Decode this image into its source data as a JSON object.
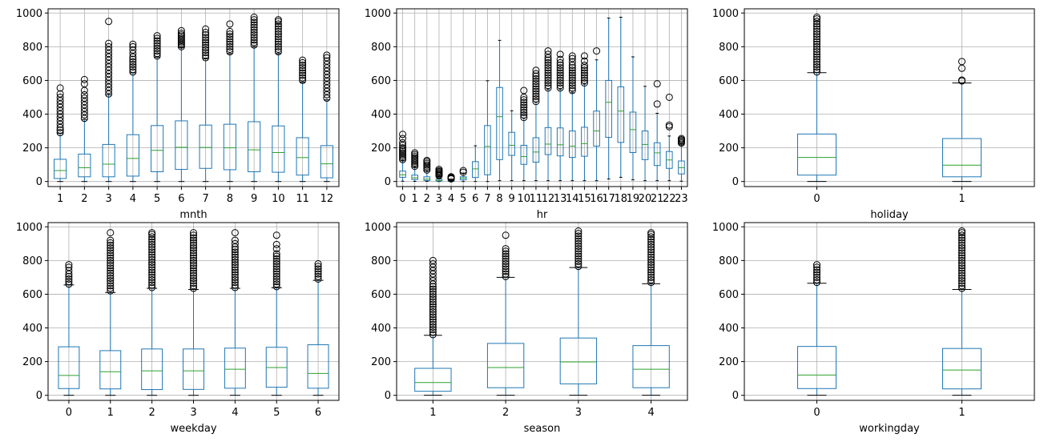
{
  "chart_data": [
    {
      "type": "box",
      "xlabel": "mnth",
      "ylim": [
        -30,
        1025
      ],
      "yticks": [
        0,
        200,
        400,
        600,
        800,
        1000
      ],
      "grid": true,
      "categories": [
        "1",
        "2",
        "3",
        "4",
        "5",
        "6",
        "7",
        "8",
        "9",
        "10",
        "11",
        "12"
      ],
      "boxes": [
        {
          "whislo": 0,
          "q1": 18,
          "med": 65,
          "q3": 132,
          "whishi": 285,
          "fliers": [
            290,
            305,
            320,
            340,
            360,
            380,
            400,
            420,
            440,
            460,
            480,
            500,
            520,
            555
          ]
        },
        {
          "whislo": 0,
          "q1": 28,
          "med": 82,
          "q3": 163,
          "whishi": 368,
          "fliers": [
            375,
            395,
            415,
            435,
            455,
            475,
            495,
            515,
            540,
            580,
            605
          ]
        },
        {
          "whislo": 0,
          "q1": 28,
          "med": 103,
          "q3": 220,
          "whishi": 515,
          "fliers": [
            520,
            540,
            560,
            580,
            600,
            620,
            640,
            660,
            680,
            700,
            720,
            740,
            760,
            780,
            800,
            820,
            950
          ]
        },
        {
          "whislo": 0,
          "q1": 32,
          "med": 137,
          "q3": 278,
          "whishi": 645,
          "fliers": [
            650,
            665,
            680,
            695,
            710,
            725,
            740,
            760,
            780,
            800,
            815
          ]
        },
        {
          "whislo": 0,
          "q1": 58,
          "med": 185,
          "q3": 332,
          "whishi": 738,
          "fliers": [
            745,
            760,
            775,
            790,
            805,
            820,
            835,
            850,
            865
          ]
        },
        {
          "whislo": 0,
          "q1": 72,
          "med": 203,
          "q3": 360,
          "whishi": 795,
          "fliers": [
            800,
            810,
            820,
            830,
            840,
            850,
            860,
            870,
            880,
            895
          ]
        },
        {
          "whislo": 0,
          "q1": 78,
          "med": 202,
          "q3": 335,
          "whishi": 728,
          "fliers": [
            735,
            750,
            765,
            780,
            795,
            810,
            825,
            840,
            855,
            870,
            885,
            905
          ]
        },
        {
          "whislo": 0,
          "q1": 70,
          "med": 200,
          "q3": 340,
          "whishi": 760,
          "fliers": [
            770,
            785,
            800,
            815,
            830,
            845,
            860,
            875,
            890,
            935
          ]
        },
        {
          "whislo": 0,
          "q1": 58,
          "med": 188,
          "q3": 355,
          "whishi": 800,
          "fliers": [
            810,
            825,
            840,
            855,
            870,
            885,
            900,
            915,
            930,
            945,
            960,
            975
          ]
        },
        {
          "whislo": 0,
          "q1": 55,
          "med": 172,
          "q3": 330,
          "whishi": 760,
          "fliers": [
            770,
            785,
            800,
            815,
            830,
            845,
            860,
            875,
            890,
            905,
            920,
            935,
            950,
            960
          ]
        },
        {
          "whislo": 0,
          "q1": 38,
          "med": 142,
          "q3": 260,
          "whishi": 590,
          "fliers": [
            600,
            615,
            630,
            645,
            660,
            675,
            690,
            705,
            720
          ]
        },
        {
          "whislo": 0,
          "q1": 22,
          "med": 105,
          "q3": 213,
          "whishi": 485,
          "fliers": [
            495,
            515,
            535,
            555,
            575,
            595,
            615,
            635,
            655,
            675,
            695,
            715,
            735,
            750
          ]
        }
      ]
    },
    {
      "type": "box",
      "xlabel": "hr",
      "ylim": [
        -30,
        1025
      ],
      "yticks": [
        0,
        200,
        400,
        600,
        800,
        1000
      ],
      "grid": true,
      "categories": [
        "0",
        "1",
        "2",
        "3",
        "4",
        "5",
        "6",
        "7",
        "8",
        "9",
        "10",
        "11",
        "12",
        "13",
        "14",
        "15",
        "16",
        "17",
        "18",
        "19",
        "20",
        "21",
        "22",
        "23"
      ],
      "boxes": [
        {
          "whislo": 2,
          "q1": 25,
          "med": 40,
          "q3": 62,
          "whishi": 125,
          "fliers": [
            130,
            140,
            150,
            160,
            170,
            180,
            190,
            200,
            215,
            230,
            255,
            280
          ]
        },
        {
          "whislo": 1,
          "q1": 12,
          "med": 22,
          "q3": 38,
          "whishi": 85,
          "fliers": [
            90,
            100,
            110,
            120,
            130,
            140,
            150,
            160,
            170
          ]
        },
        {
          "whislo": 1,
          "q1": 6,
          "med": 14,
          "q3": 28,
          "whishi": 62,
          "fliers": [
            68,
            78,
            88,
            98,
            108,
            118,
            125
          ]
        },
        {
          "whislo": 0,
          "q1": 3,
          "med": 6,
          "q3": 14,
          "whishi": 30,
          "fliers": [
            34,
            40,
            46,
            52,
            58,
            64,
            72
          ]
        },
        {
          "whislo": 0,
          "q1": 2,
          "med": 5,
          "q3": 8,
          "whishi": 14,
          "fliers": [
            16,
            20,
            24,
            28
          ]
        },
        {
          "whislo": 0,
          "q1": 10,
          "med": 20,
          "q3": 28,
          "whishi": 50,
          "fliers": [
            55,
            65
          ]
        },
        {
          "whislo": 0,
          "q1": 24,
          "med": 75,
          "q3": 118,
          "whishi": 212,
          "fliers": []
        },
        {
          "whislo": 0,
          "q1": 40,
          "med": 208,
          "q3": 332,
          "whishi": 598,
          "fliers": []
        },
        {
          "whislo": 5,
          "q1": 130,
          "med": 385,
          "q3": 558,
          "whishi": 838,
          "fliers": []
        },
        {
          "whislo": 5,
          "q1": 155,
          "med": 215,
          "q3": 292,
          "whishi": 420,
          "fliers": []
        },
        {
          "whislo": 5,
          "q1": 102,
          "med": 148,
          "q3": 215,
          "whishi": 375,
          "fliers": [
            380,
            395,
            410,
            425,
            440,
            455,
            470,
            485,
            500,
            540
          ]
        },
        {
          "whislo": 5,
          "q1": 115,
          "med": 175,
          "q3": 260,
          "whishi": 470,
          "fliers": [
            475,
            490,
            505,
            520,
            535,
            550,
            565,
            580,
            595,
            610,
            625,
            640,
            660
          ]
        },
        {
          "whislo": 5,
          "q1": 160,
          "med": 222,
          "q3": 320,
          "whishi": 548,
          "fliers": [
            555,
            570,
            585,
            600,
            615,
            630,
            645,
            660,
            675,
            690,
            705,
            720,
            735,
            755,
            775
          ]
        },
        {
          "whislo": 5,
          "q1": 152,
          "med": 218,
          "q3": 318,
          "whishi": 548,
          "fliers": [
            555,
            570,
            585,
            600,
            615,
            630,
            645,
            660,
            675,
            690,
            705,
            725,
            755
          ]
        },
        {
          "whislo": 5,
          "q1": 143,
          "med": 210,
          "q3": 300,
          "whishi": 530,
          "fliers": [
            540,
            555,
            570,
            585,
            600,
            615,
            630,
            645,
            660,
            675,
            690,
            710,
            730,
            745
          ]
        },
        {
          "whislo": 5,
          "q1": 150,
          "med": 225,
          "q3": 322,
          "whishi": 578,
          "fliers": [
            585,
            600,
            615,
            630,
            645,
            660,
            675,
            690,
            715,
            745
          ]
        },
        {
          "whislo": 5,
          "q1": 210,
          "med": 300,
          "q3": 418,
          "whishi": 722,
          "fliers": [
            775
          ]
        },
        {
          "whislo": 15,
          "q1": 262,
          "med": 470,
          "q3": 600,
          "whishi": 970,
          "fliers": []
        },
        {
          "whislo": 25,
          "q1": 232,
          "med": 418,
          "q3": 562,
          "whishi": 975,
          "fliers": []
        },
        {
          "whislo": 10,
          "q1": 172,
          "med": 308,
          "q3": 412,
          "whishi": 740,
          "fliers": []
        },
        {
          "whislo": 5,
          "q1": 130,
          "med": 220,
          "q3": 300,
          "whishi": 565,
          "fliers": []
        },
        {
          "whislo": 5,
          "q1": 95,
          "med": 170,
          "q3": 230,
          "whishi": 405,
          "fliers": [
            460,
            580
          ]
        },
        {
          "whislo": 5,
          "q1": 78,
          "med": 128,
          "q3": 178,
          "whishi": 270,
          "fliers": [
            325,
            335,
            500
          ]
        },
        {
          "whislo": 2,
          "q1": 45,
          "med": 82,
          "q3": 122,
          "whishi": 218,
          "fliers": [
            228,
            235,
            242,
            248,
            255
          ]
        }
      ]
    },
    {
      "type": "box",
      "xlabel": "holiday",
      "ylim": [
        -30,
        1025
      ],
      "yticks": [
        0,
        200,
        400,
        600,
        800,
        1000
      ],
      "grid": true,
      "categories": [
        "0",
        "1"
      ],
      "boxes": [
        {
          "whislo": 0,
          "q1": 38,
          "med": 143,
          "q3": 282,
          "whishi": 646,
          "fliers": [
            650,
            665,
            680,
            695,
            710,
            725,
            740,
            755,
            770,
            785,
            800,
            815,
            830,
            845,
            860,
            875,
            890,
            905,
            920,
            935,
            950,
            965,
            975
          ]
        },
        {
          "whislo": 0,
          "q1": 28,
          "med": 97,
          "q3": 255,
          "whishi": 585,
          "fliers": [
            597,
            602,
            672,
            712
          ]
        }
      ]
    },
    {
      "type": "box",
      "xlabel": "weekday",
      "ylim": [
        -30,
        1025
      ],
      "yticks": [
        0,
        200,
        400,
        600,
        800,
        1000
      ],
      "grid": true,
      "categories": [
        "0",
        "1",
        "2",
        "3",
        "4",
        "5",
        "6"
      ],
      "boxes": [
        {
          "whislo": 0,
          "q1": 40,
          "med": 118,
          "q3": 288,
          "whishi": 655,
          "fliers": [
            660,
            675,
            690,
            705,
            720,
            740,
            760,
            775
          ]
        },
        {
          "whislo": 0,
          "q1": 38,
          "med": 140,
          "q3": 265,
          "whishi": 610,
          "fliers": [
            620,
            635,
            650,
            665,
            680,
            695,
            710,
            725,
            740,
            755,
            770,
            785,
            800,
            815,
            830,
            845,
            860,
            875,
            890,
            905,
            920,
            965
          ]
        },
        {
          "whislo": 0,
          "q1": 34,
          "med": 145,
          "q3": 275,
          "whishi": 635,
          "fliers": [
            640,
            655,
            670,
            685,
            700,
            715,
            730,
            745,
            760,
            775,
            790,
            805,
            820,
            835,
            850,
            865,
            880,
            895,
            910,
            925,
            940,
            955,
            965
          ]
        },
        {
          "whislo": 0,
          "q1": 35,
          "med": 145,
          "q3": 275,
          "whishi": 628,
          "fliers": [
            635,
            650,
            665,
            680,
            695,
            710,
            725,
            740,
            755,
            770,
            785,
            800,
            815,
            830,
            845,
            860,
            875,
            890,
            905,
            920,
            935,
            950,
            965
          ]
        },
        {
          "whislo": 0,
          "q1": 42,
          "med": 155,
          "q3": 280,
          "whishi": 635,
          "fliers": [
            640,
            655,
            670,
            685,
            700,
            715,
            730,
            745,
            760,
            775,
            790,
            805,
            820,
            835,
            850,
            865,
            880,
            900,
            920,
            965
          ]
        },
        {
          "whislo": 0,
          "q1": 48,
          "med": 165,
          "q3": 285,
          "whishi": 638,
          "fliers": [
            645,
            660,
            675,
            690,
            705,
            720,
            735,
            750,
            765,
            780,
            795,
            810,
            825,
            840,
            870,
            895,
            950
          ]
        },
        {
          "whislo": 0,
          "q1": 42,
          "med": 130,
          "q3": 300,
          "whishi": 682,
          "fliers": [
            690,
            705,
            720,
            735,
            750,
            765,
            780
          ]
        }
      ]
    },
    {
      "type": "box",
      "xlabel": "season",
      "ylim": [
        -30,
        1025
      ],
      "yticks": [
        0,
        200,
        400,
        600,
        800,
        1000
      ],
      "grid": true,
      "categories": [
        "1",
        "2",
        "3",
        "4"
      ],
      "boxes": [
        {
          "whislo": 0,
          "q1": 24,
          "med": 76,
          "q3": 160,
          "whishi": 356,
          "fliers": [
            360,
            375,
            390,
            405,
            420,
            435,
            450,
            465,
            480,
            495,
            510,
            525,
            540,
            555,
            570,
            585,
            600,
            615,
            630,
            645,
            660,
            680,
            700,
            720,
            740,
            760,
            780,
            800
          ]
        },
        {
          "whislo": 0,
          "q1": 45,
          "med": 165,
          "q3": 308,
          "whishi": 700,
          "fliers": [
            705,
            720,
            735,
            750,
            765,
            780,
            795,
            810,
            825,
            840,
            855,
            870,
            950
          ]
        },
        {
          "whislo": 0,
          "q1": 68,
          "med": 198,
          "q3": 340,
          "whishi": 758,
          "fliers": [
            765,
            780,
            795,
            810,
            825,
            840,
            855,
            870,
            885,
            900,
            915,
            930,
            945,
            960,
            975
          ]
        },
        {
          "whislo": 0,
          "q1": 45,
          "med": 155,
          "q3": 295,
          "whishi": 662,
          "fliers": [
            670,
            685,
            700,
            715,
            730,
            745,
            760,
            775,
            790,
            805,
            820,
            835,
            850,
            865,
            880,
            895,
            910,
            925,
            940,
            955,
            965
          ]
        }
      ]
    },
    {
      "type": "box",
      "xlabel": "workingday",
      "ylim": [
        -30,
        1025
      ],
      "yticks": [
        0,
        200,
        400,
        600,
        800,
        1000
      ],
      "grid": true,
      "categories": [
        "0",
        "1"
      ],
      "boxes": [
        {
          "whislo": 0,
          "q1": 40,
          "med": 120,
          "q3": 290,
          "whishi": 665,
          "fliers": [
            670,
            685,
            700,
            715,
            730,
            745,
            760,
            775
          ]
        },
        {
          "whislo": 0,
          "q1": 38,
          "med": 150,
          "q3": 278,
          "whishi": 628,
          "fliers": [
            635,
            650,
            665,
            680,
            695,
            710,
            725,
            740,
            755,
            770,
            785,
            800,
            815,
            830,
            845,
            860,
            875,
            890,
            905,
            920,
            935,
            950,
            965,
            975
          ]
        }
      ]
    }
  ]
}
